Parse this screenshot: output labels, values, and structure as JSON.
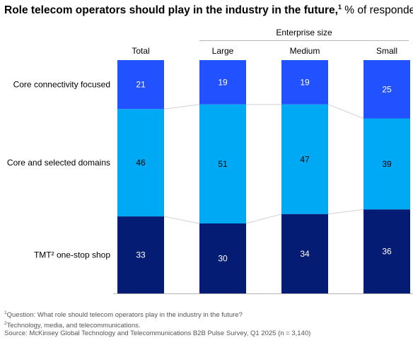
{
  "title": {
    "main": "Role telecom operators should play in the industry in the future,",
    "sup": "1",
    "sub": " % of respondents"
  },
  "enterprise_size_label": "Enterprise size",
  "chart_data": {
    "type": "bar",
    "stacked": true,
    "normalized_100": true,
    "categories": [
      "Total",
      "Large",
      "Medium",
      "Small"
    ],
    "series": [
      {
        "name": "Core connectivity focused",
        "color": "#2251ff",
        "values": [
          21,
          19,
          19,
          25
        ]
      },
      {
        "name": "Core and selected domains",
        "color": "#00a9f4",
        "values": [
          46,
          51,
          47,
          39
        ]
      },
      {
        "name": "TMT² one-stop shop",
        "color": "#051c75",
        "values": [
          33,
          30,
          34,
          36
        ]
      }
    ],
    "label_colors": [
      "#ffffff",
      "#000000",
      "#ffffff"
    ],
    "grid": false,
    "legend": "row labels on left"
  },
  "footnotes": [
    {
      "sup": "1",
      "text": "Question: What role should telecom operators play in the industry in the future?"
    },
    {
      "sup": "2",
      "text": "Technology, media, and telecommunications."
    },
    {
      "sup": "",
      "text": "Source: McKinsey Global Technology and Telecommunications B2B Pulse Survey, Q1 2025 (n = 3,140)"
    }
  ]
}
